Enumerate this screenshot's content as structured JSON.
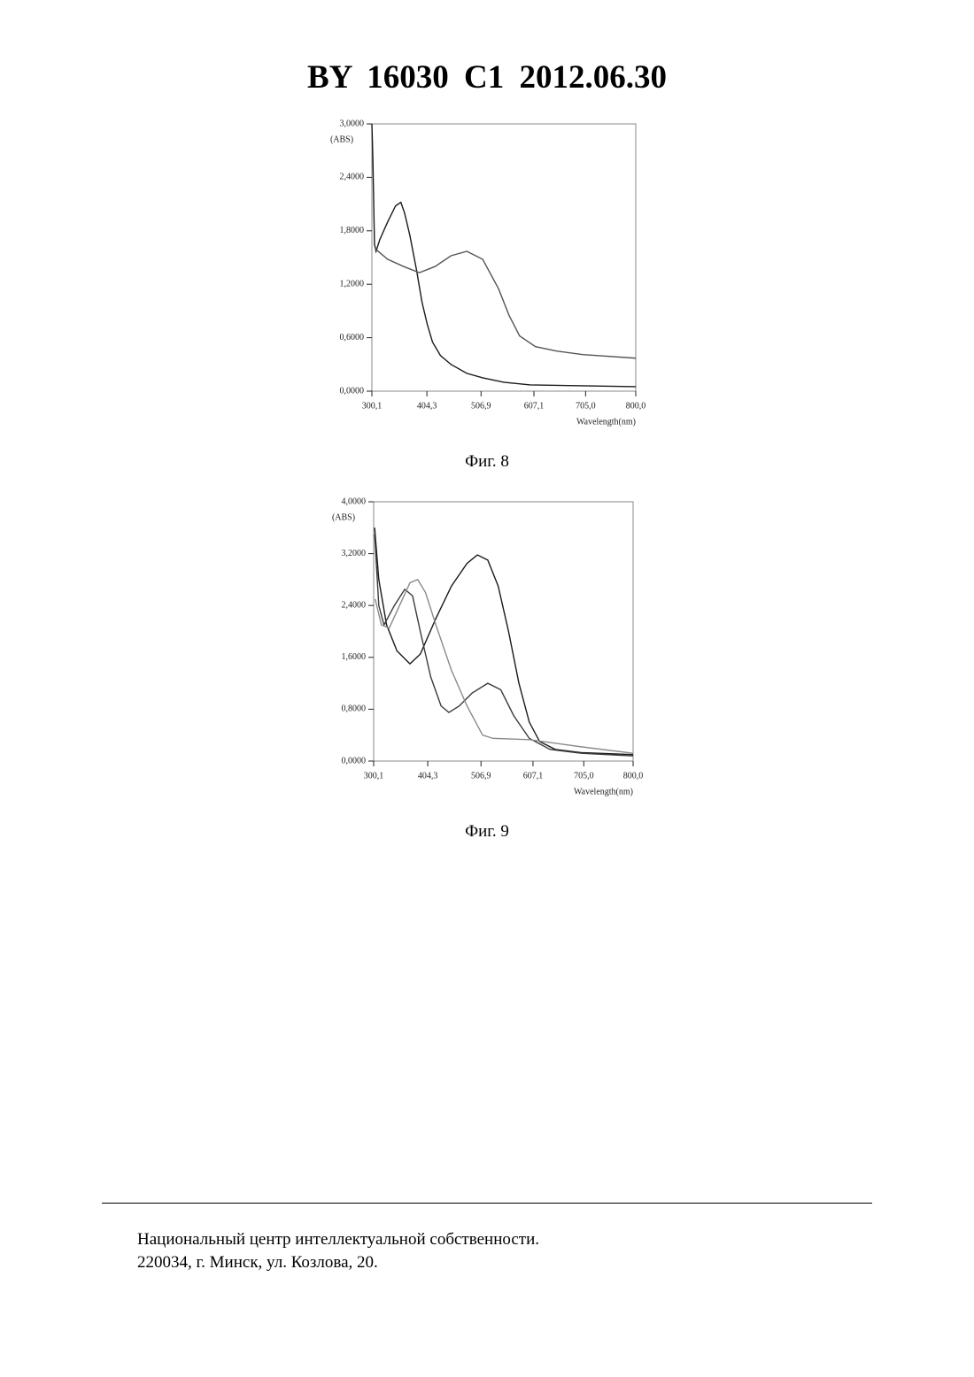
{
  "header": {
    "title": "BY 16030 C1 2012.06.30"
  },
  "captions": [
    "Фиг. 8",
    "Фиг. 9"
  ],
  "footer": [
    "Национальный центр интеллектуальной собственности.",
    "220034, г. Минск, ул. Козлова, 20."
  ],
  "chart_data": [
    {
      "type": "line",
      "ylabel": "(ABS)",
      "xlabel": "Wavelength(nm)",
      "xlim": [
        300.1,
        800.0
      ],
      "ylim": [
        0,
        3.0
      ],
      "xticks": [
        {
          "value": 300.1,
          "label": "300,1"
        },
        {
          "value": 404.3,
          "label": "404,3"
        },
        {
          "value": 506.9,
          "label": "506,9"
        },
        {
          "value": 607.1,
          "label": "607,1"
        },
        {
          "value": 705.0,
          "label": "705,0"
        },
        {
          "value": 800.0,
          "label": "800,0"
        }
      ],
      "yticks": [
        {
          "value": 0,
          "label": "0,0000"
        },
        {
          "value": 0.6,
          "label": "0,6000"
        },
        {
          "value": 1.2,
          "label": "1,2000"
        },
        {
          "value": 1.8,
          "label": "1,8000"
        },
        {
          "value": 2.4,
          "label": "2,4000"
        },
        {
          "value": 3.0,
          "label": "3,0000"
        }
      ],
      "series": [
        {
          "color": "#1a1a1a",
          "x": [
            300.1,
            302,
            305,
            308,
            315,
            330,
            345,
            355,
            362,
            372,
            385,
            395,
            405,
            415,
            430,
            450,
            480,
            510,
            550,
            600,
            700,
            800
          ],
          "values": [
            3.0,
            2.6,
            1.65,
            1.57,
            1.7,
            1.9,
            2.08,
            2.12,
            2.0,
            1.75,
            1.35,
            1.0,
            0.75,
            0.55,
            0.4,
            0.3,
            0.2,
            0.15,
            0.1,
            0.07,
            0.06,
            0.05
          ]
        },
        {
          "color": "#555555",
          "x": [
            306,
            330,
            360,
            390,
            420,
            450,
            480,
            510,
            540,
            560,
            580,
            610,
            650,
            700,
            800
          ],
          "values": [
            1.6,
            1.48,
            1.4,
            1.33,
            1.4,
            1.52,
            1.57,
            1.48,
            1.15,
            0.85,
            0.62,
            0.5,
            0.45,
            0.41,
            0.37
          ]
        }
      ]
    },
    {
      "type": "line",
      "ylabel": "(ABS)",
      "xlabel": "Wavelength(nm)",
      "xlim": [
        300.1,
        800.0
      ],
      "ylim": [
        0,
        4.0
      ],
      "xticks": [
        {
          "value": 300.1,
          "label": "300,1"
        },
        {
          "value": 404.3,
          "label": "404,3"
        },
        {
          "value": 506.9,
          "label": "506,9"
        },
        {
          "value": 607.1,
          "label": "607,1"
        },
        {
          "value": 705.0,
          "label": "705,0"
        },
        {
          "value": 800.0,
          "label": "800,0"
        }
      ],
      "yticks": [
        {
          "value": 0,
          "label": "0,0000"
        },
        {
          "value": 0.8,
          "label": "0,8000"
        },
        {
          "value": 1.6,
          "label": "1,6000"
        },
        {
          "value": 2.4,
          "label": "2,4000"
        },
        {
          "value": 3.2,
          "label": "3,2000"
        },
        {
          "value": 4.0,
          "label": "4,0000"
        }
      ],
      "series": [
        {
          "color": "#1a1a1a",
          "x": [
            302,
            310,
            325,
            345,
            370,
            390,
            420,
            450,
            480,
            500,
            520,
            540,
            560,
            580,
            600,
            620,
            650,
            700,
            800
          ],
          "values": [
            3.6,
            2.8,
            2.1,
            1.7,
            1.5,
            1.65,
            2.2,
            2.7,
            3.05,
            3.18,
            3.1,
            2.7,
            2.0,
            1.2,
            0.6,
            0.3,
            0.18,
            0.13,
            0.1
          ]
        },
        {
          "color": "#3a3a3a",
          "x": [
            302,
            310,
            320,
            340,
            360,
            375,
            390,
            410,
            430,
            445,
            465,
            490,
            520,
            545,
            570,
            600,
            640,
            700,
            800
          ],
          "values": [
            3.5,
            2.4,
            2.1,
            2.4,
            2.65,
            2.55,
            2.0,
            1.3,
            0.85,
            0.75,
            0.85,
            1.05,
            1.2,
            1.1,
            0.7,
            0.35,
            0.18,
            0.12,
            0.08
          ]
        },
        {
          "color": "#8a8a8a",
          "x": [
            303,
            315,
            330,
            350,
            370,
            385,
            400,
            420,
            450,
            480,
            510,
            530,
            600,
            700,
            800
          ],
          "values": [
            2.5,
            2.1,
            2.05,
            2.4,
            2.75,
            2.8,
            2.6,
            2.1,
            1.4,
            0.85,
            0.4,
            0.35,
            0.33,
            0.22,
            0.12
          ]
        }
      ]
    }
  ]
}
